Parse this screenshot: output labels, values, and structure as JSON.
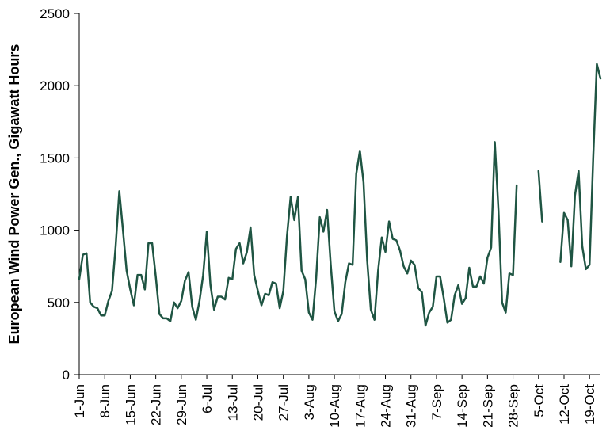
{
  "chart_data": {
    "type": "line",
    "title": "",
    "xlabel": "",
    "ylabel": "European Wind Power Gen., Gigawatt Hours",
    "ylim": [
      0,
      2500
    ],
    "yticks": [
      "0",
      "500",
      "1000",
      "1500",
      "2000",
      "2500"
    ],
    "grid": false,
    "legend": "none",
    "x_start": "1-Jun",
    "x_end": "21-Oct",
    "xtick_labels": [
      "1-Jun",
      "8-Jun",
      "15-Jun",
      "22-Jun",
      "29-Jun",
      "6-Jul",
      "13-Jul",
      "20-Jul",
      "27-Jul",
      "3-Aug",
      "10-Aug",
      "17-Aug",
      "24-Aug",
      "31-Aug",
      "7-Sep",
      "14-Sep",
      "21-Sep",
      "28-Sep",
      "5-Oct",
      "12-Oct",
      "19-Oct"
    ],
    "colors": {
      "line": "#1f5543",
      "axis": "#000000"
    },
    "series": [
      {
        "values": [
          660,
          830,
          840,
          500,
          470,
          460,
          410,
          410,
          510,
          580,
          890,
          1270,
          1000,
          720,
          590,
          480,
          690,
          690,
          590,
          910,
          910,
          680,
          420,
          390,
          390,
          370,
          500,
          460,
          510,
          650,
          710,
          470,
          380,
          510,
          690,
          990,
          620,
          450,
          540,
          540,
          520,
          670,
          660,
          870,
          910,
          770,
          850,
          1020,
          690,
          580,
          480,
          560,
          550,
          640,
          630,
          460,
          580,
          960,
          1230,
          1070,
          1230,
          720,
          660,
          430,
          380,
          670,
          1090,
          990,
          1140,
          760,
          440,
          370,
          420,
          640,
          770,
          760,
          1390,
          1550,
          1330,
          790,
          450,
          380,
          720,
          950,
          850,
          1060,
          940,
          930,
          860,
          750,
          700,
          790,
          760,
          600,
          570,
          340,
          430,
          470,
          680,
          680,
          530,
          360,
          380,
          550,
          620,
          490,
          530,
          740,
          610,
          610,
          680,
          630,
          810,
          880,
          1610,
          1140,
          500,
          430,
          700,
          690,
          1310,
          null,
          null,
          null,
          null,
          null,
          1410,
          1060,
          null,
          null,
          null,
          null,
          780,
          1120,
          1070,
          750,
          1240,
          1410,
          890,
          730,
          760,
          1500,
          2150,
          2050
        ]
      }
    ]
  }
}
